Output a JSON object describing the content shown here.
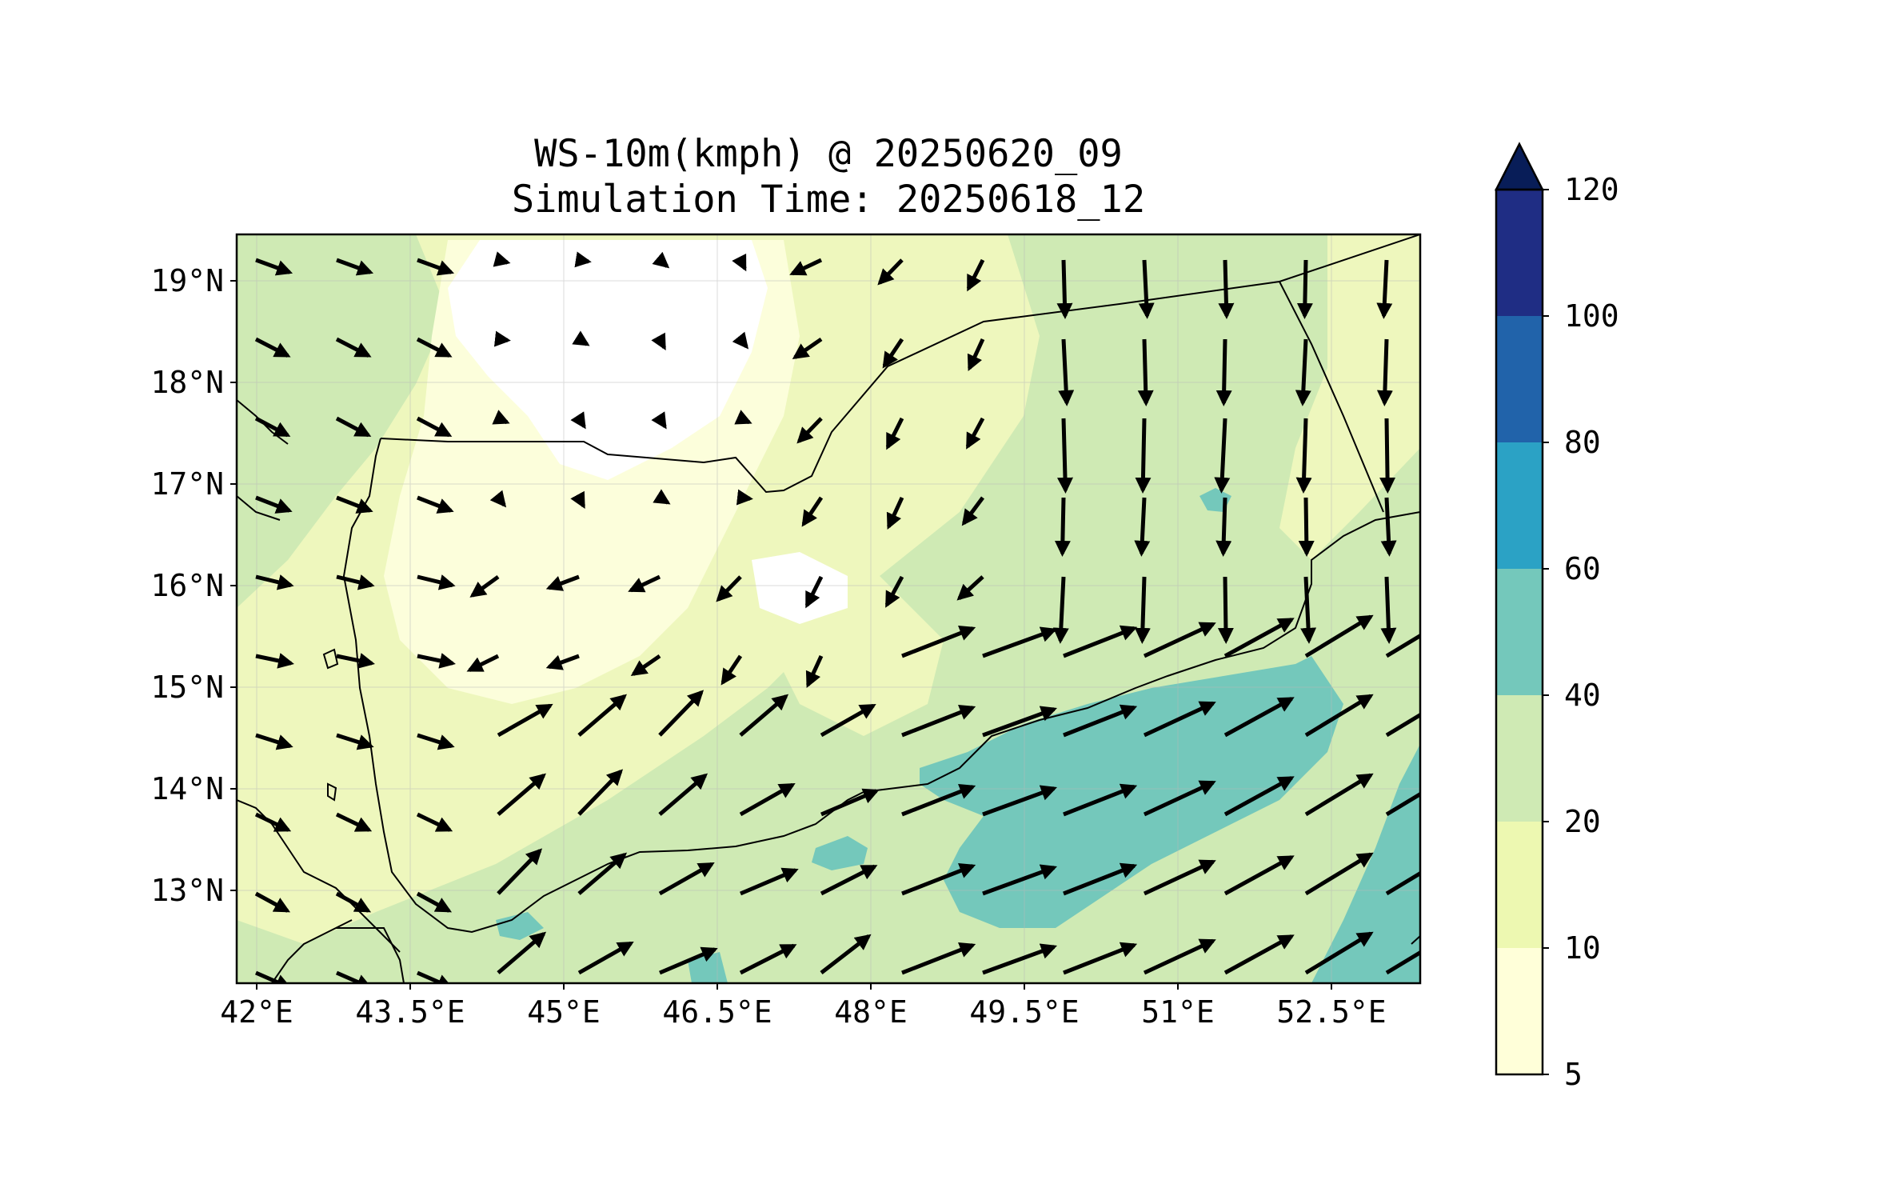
{
  "title": {
    "line1": "WS-10m(kmph) @ 20250620_09",
    "line2": "Simulation Time: 20250618_12"
  },
  "axes": {
    "lon_range": [
      41.8,
      53.3
    ],
    "lat_range": [
      12.1,
      19.45
    ],
    "x_ticks": [
      "42°E",
      "43.5°E",
      "45°E",
      "46.5°E",
      "48°E",
      "49.5°E",
      "51°E",
      "52.5°E"
    ],
    "y_ticks": [
      "19°N",
      "18°N",
      "17°N",
      "16°N",
      "15°N",
      "14°N",
      "13°N"
    ],
    "grid": true
  },
  "colorbar": {
    "ticks": [
      "120",
      "100",
      "80",
      "60",
      "40",
      "20",
      "10",
      "5"
    ],
    "extend": "max",
    "colors": {
      "5-10": "#ffffd9",
      "10-20": "#edf8b1",
      "20-40": "#cfeab4",
      "40-60": "#74c8bb",
      "60-80": "#2ba2c5",
      "80-100": "#2163aa",
      "100-120": "#1f2d84",
      "over": "#081d58"
    }
  },
  "map_colors": {
    "white": "#ffffff",
    "very_light": "#fcfedb",
    "light": "#eef7bd",
    "green": "#cfeab4",
    "teal": "#74c8bb"
  },
  "wind_vectors_note": ""
}
